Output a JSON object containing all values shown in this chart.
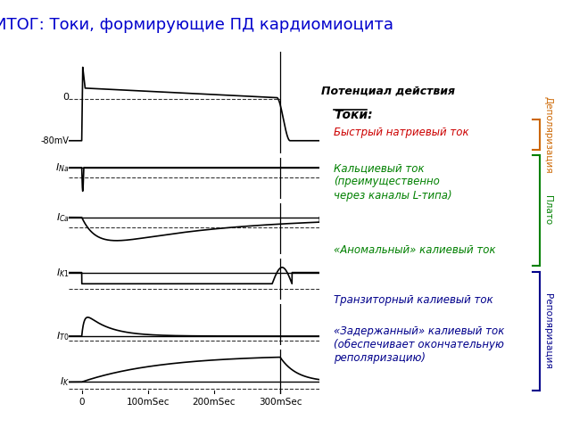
{
  "title": "ИТОГ: Токи, формирующие ПД кардиомиоцита",
  "title_color": "#0000cc",
  "title_fontsize": 13,
  "background_color": "#ffffff",
  "panels": {
    "num": 6,
    "height_ratios": [
      3,
      1.2,
      1.5,
      1.2,
      1.2,
      1.3
    ]
  },
  "labels": {
    "action_potential": "Потенциал действия",
    "currents_header": "Токи:",
    "ina": "Быстрый натриевый ток",
    "ina_color": "#cc0000",
    "ica": "Кальциевый ток\n(преимущественно\nчерез каналы L-типа)",
    "ica_color": "#008000",
    "ik1": "«Аномальный» калиевый ток",
    "ik1_color": "#008000",
    "ito": "Транзиторный калиевый ток",
    "ito_color": "#00008B",
    "ik": "«Задержанный» калиевый ток\n(обеспечивает окончательную\nреполяризацию)",
    "ik_color": "#00008B",
    "depol": "Деполяризация",
    "depol_color": "#cc6600",
    "plato": "Плато",
    "plato_color": "#008000",
    "repol": "Реполяризация",
    "repol_color": "#00008B",
    "zero": "0",
    "mv80": "-80mV"
  }
}
